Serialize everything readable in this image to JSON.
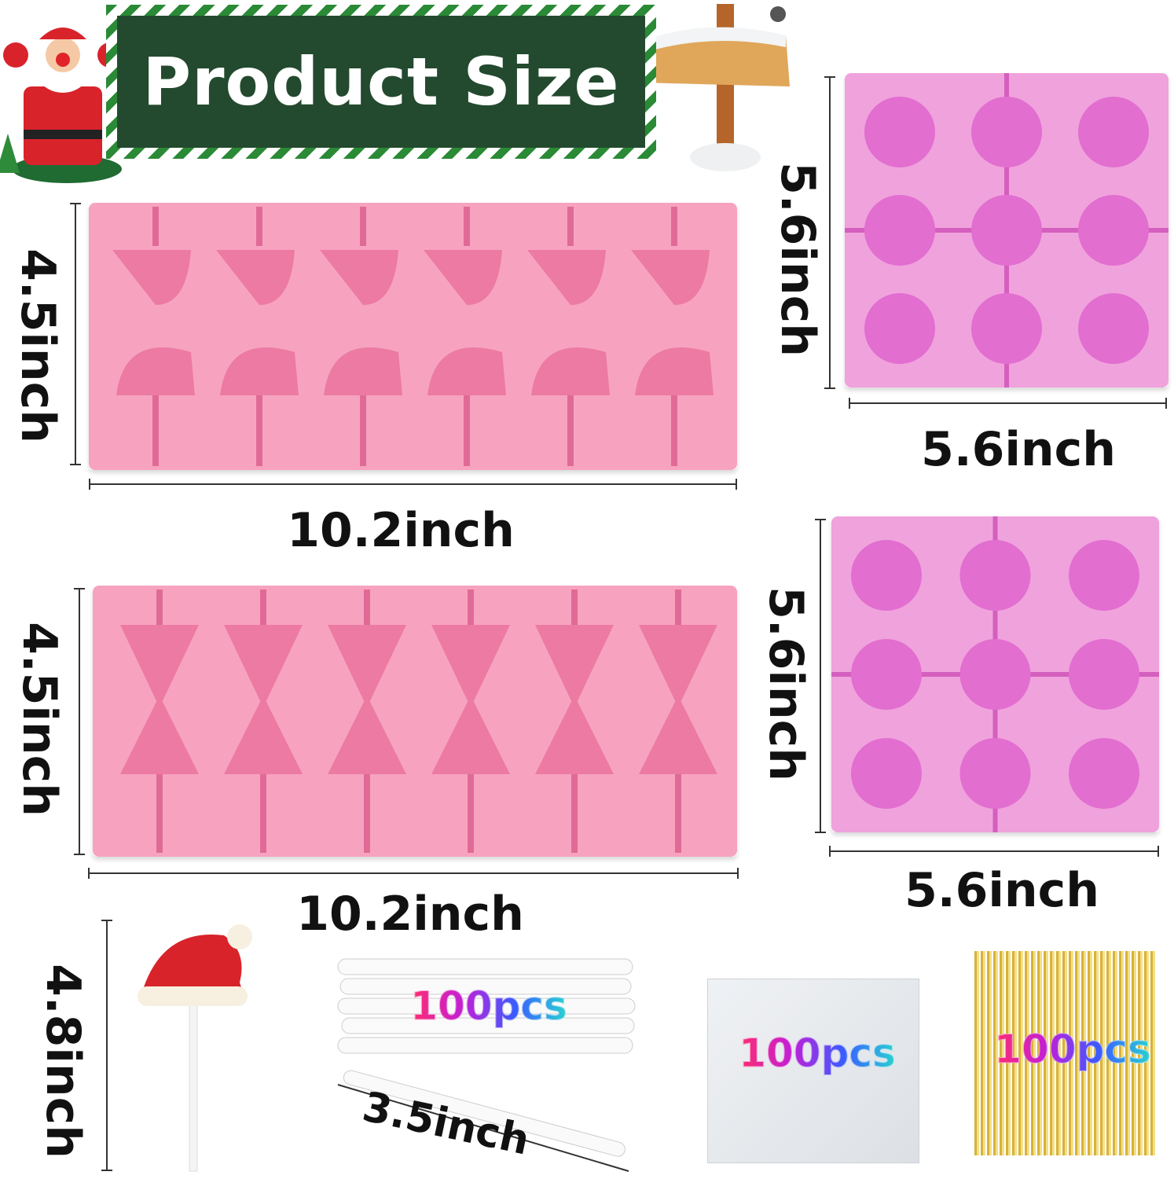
{
  "banner": {
    "title": "Product Size"
  },
  "colors": {
    "banner_green": "#234a2e",
    "mold_pink": "#f7a3bf",
    "mold_purple_pink": "#f0a2dc",
    "gold": "#d8b23a"
  },
  "molds": [
    {
      "name": "santa-hat-mold",
      "height": "4.5inch",
      "width": "10.2inch"
    },
    {
      "name": "christmas-mix-mold-1",
      "height": "5.6inch",
      "width": "5.6inch"
    },
    {
      "name": "christmas-tree-mold",
      "height": "4.5inch",
      "width": "10.2inch"
    },
    {
      "name": "christmas-mix-mold-2",
      "height": "5.6inch",
      "width": "5.6inch"
    }
  ],
  "accessories": {
    "lollipop_height": "4.8inch",
    "sticks": {
      "count": "100pcs",
      "length": "3.5inch"
    },
    "bags": {
      "count": "100pcs"
    },
    "twist_ties": {
      "count": "100pcs"
    }
  }
}
